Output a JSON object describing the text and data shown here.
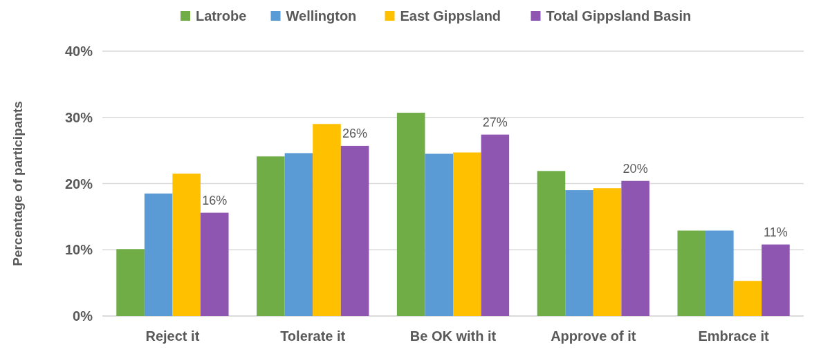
{
  "chart_data": {
    "type": "bar",
    "ylabel": "Percentage of participants",
    "categories": [
      "Reject it",
      "Tolerate it",
      "Be OK with it",
      "Approve of it",
      "Embrace it"
    ],
    "series": [
      {
        "name": "Latrobe",
        "color": "#70ad47",
        "values": [
          10.1,
          24.1,
          30.7,
          21.9,
          12.9
        ]
      },
      {
        "name": "Wellington",
        "color": "#5b9bd5",
        "values": [
          18.5,
          24.6,
          24.5,
          19.0,
          12.9
        ]
      },
      {
        "name": "East Gippsland",
        "color": "#ffc000",
        "values": [
          21.5,
          29.0,
          24.7,
          19.3,
          5.3
        ]
      },
      {
        "name": "Total Gippsland Basin",
        "color": "#8e56b0",
        "values": [
          15.6,
          25.7,
          27.4,
          20.4,
          10.8
        ],
        "value_labels": [
          "16%",
          "26%",
          "27%",
          "20%",
          "11%"
        ]
      }
    ],
    "ylim": [
      0,
      40
    ],
    "yticks": [
      {
        "value": 0,
        "label": "0%"
      },
      {
        "value": 10,
        "label": "10%"
      },
      {
        "value": 20,
        "label": "20%"
      },
      {
        "value": 30,
        "label": "30%"
      },
      {
        "value": 40,
        "label": "40%"
      }
    ],
    "grid": "y",
    "legend": "top"
  }
}
